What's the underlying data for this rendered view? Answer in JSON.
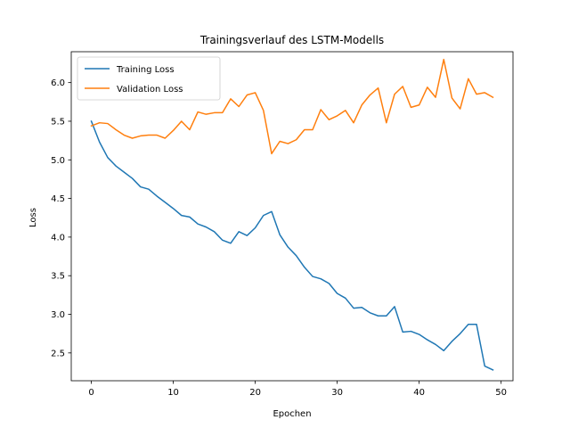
{
  "chart_data": {
    "type": "line",
    "title": "Trainingsverlauf des LSTM-Modells",
    "xlabel": "Epochen",
    "ylabel": "Loss",
    "xlim": [
      -2.45,
      51.45
    ],
    "ylim": [
      2.14,
      6.4
    ],
    "x_ticks": [
      0,
      10,
      20,
      30,
      40,
      50
    ],
    "y_ticks": [
      2.5,
      3.0,
      3.5,
      4.0,
      4.5,
      5.0,
      5.5,
      6.0
    ],
    "y_tick_labels": [
      "2.5",
      "3.0",
      "3.5",
      "4.0",
      "4.5",
      "5.0",
      "5.5",
      "6.0"
    ],
    "grid": false,
    "legend_position": "top-left",
    "x": [
      0,
      1,
      2,
      3,
      4,
      5,
      6,
      7,
      8,
      9,
      10,
      11,
      12,
      13,
      14,
      15,
      16,
      17,
      18,
      19,
      20,
      21,
      22,
      23,
      24,
      25,
      26,
      27,
      28,
      29,
      30,
      31,
      32,
      33,
      34,
      35,
      36,
      37,
      38,
      39,
      40,
      41,
      42,
      43,
      44,
      45,
      46,
      47,
      48,
      49
    ],
    "series": [
      {
        "name": "Training Loss",
        "color": "#1f77b4",
        "values": [
          5.5,
          5.23,
          5.03,
          4.92,
          4.84,
          4.76,
          4.65,
          4.62,
          4.53,
          4.45,
          4.37,
          4.28,
          4.26,
          4.17,
          4.13,
          4.07,
          3.96,
          3.92,
          4.07,
          4.02,
          4.12,
          4.28,
          4.33,
          4.03,
          3.87,
          3.76,
          3.61,
          3.49,
          3.46,
          3.4,
          3.27,
          3.21,
          3.08,
          3.09,
          3.02,
          2.98,
          2.98,
          3.1,
          2.77,
          2.78,
          2.74,
          2.67,
          2.61,
          2.53,
          2.65,
          2.75,
          2.87,
          2.87,
          2.33,
          2.28
        ]
      },
      {
        "name": "Validation Loss",
        "color": "#ff7f0e",
        "values": [
          5.44,
          5.48,
          5.47,
          5.39,
          5.32,
          5.28,
          5.31,
          5.32,
          5.32,
          5.28,
          5.38,
          5.5,
          5.39,
          5.62,
          5.59,
          5.61,
          5.61,
          5.79,
          5.69,
          5.84,
          5.87,
          5.64,
          5.08,
          5.24,
          5.21,
          5.26,
          5.39,
          5.39,
          5.65,
          5.52,
          5.57,
          5.64,
          5.48,
          5.71,
          5.84,
          5.93,
          5.48,
          5.85,
          5.95,
          5.68,
          5.71,
          5.94,
          5.81,
          6.3,
          5.8,
          5.66,
          6.05,
          5.85,
          5.87,
          5.81
        ]
      }
    ]
  }
}
